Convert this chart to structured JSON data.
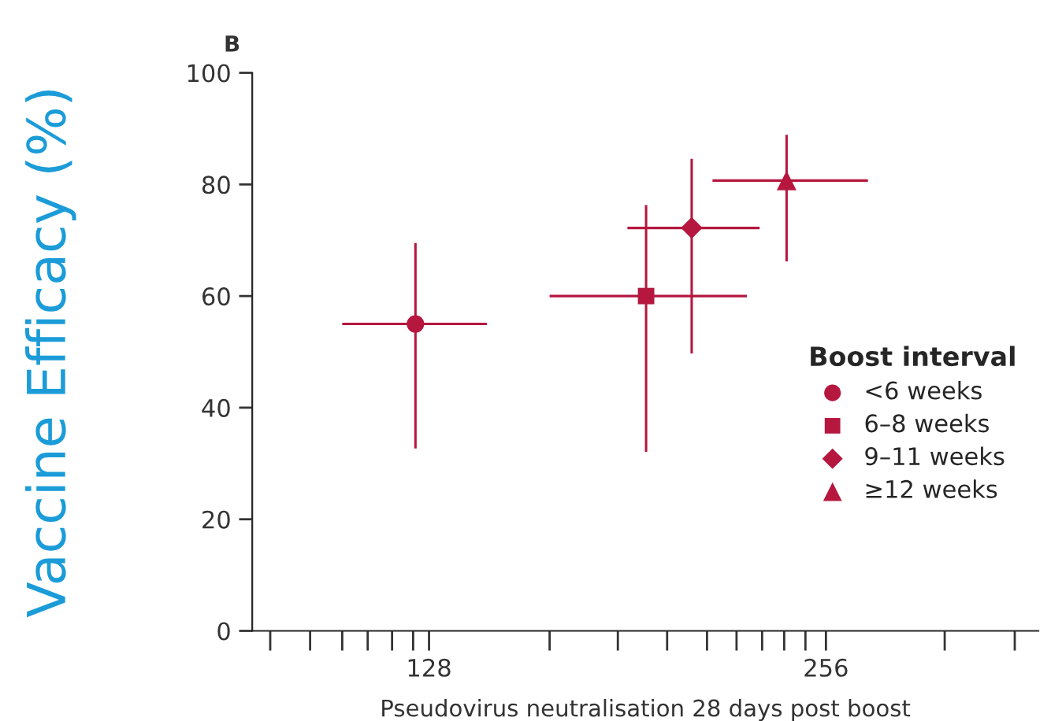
{
  "chart_data": {
    "type": "scatter",
    "title": "B",
    "xlabel": "Pseudovirus neutralisation 28 days post boost",
    "ylabel": "Vaccine Efficacy (%)",
    "legend_title": "Boost interval",
    "legend": "right",
    "log": "x",
    "grid": false,
    "xlim": [
      94,
      371
    ],
    "ylim": [
      0,
      100
    ],
    "yticks": [
      0,
      20,
      40,
      60,
      80,
      100
    ],
    "xticks": [
      {
        "value": 97,
        "label": null
      },
      {
        "value": 104,
        "label": null
      },
      {
        "value": 110,
        "label": null
      },
      {
        "value": 115,
        "label": null
      },
      {
        "value": 120,
        "label": null
      },
      {
        "value": 124.5,
        "label": null
      },
      128,
      {
        "value": 158,
        "label": null
      },
      {
        "value": 178,
        "label": null
      },
      {
        "value": 194,
        "label": null
      },
      {
        "value": 208,
        "label": null
      },
      {
        "value": 219,
        "label": null
      },
      {
        "value": 229,
        "label": null
      },
      {
        "value": 238,
        "label": null
      },
      {
        "value": 247,
        "label": null
      },
      256,
      {
        "value": 315,
        "label": null
      },
      {
        "value": 356,
        "label": null
      }
    ],
    "series": [
      {
        "name": "<6 weeks",
        "color": "#b5173f",
        "marker": "circle",
        "x": [
          125
        ],
        "values": [
          55
        ],
        "errors": [
          [
            32.7,
            69.5
          ]
        ],
        "xerrors": [
          [
            110,
            141.6
          ]
        ]
      },
      {
        "name": "6–8 weeks",
        "color": "#b5173f",
        "marker": "square",
        "x": [
          187
        ],
        "values": [
          60
        ],
        "errors": [
          [
            32.1,
            76.3
          ]
        ],
        "xerrors": [
          [
            158,
            223
          ]
        ]
      },
      {
        "name": "9–11 weeks",
        "color": "#b5173f",
        "marker": "diamond",
        "x": [
          202.5
        ],
        "values": [
          72.2
        ],
        "errors": [
          [
            49.7,
            84.6
          ]
        ],
        "xerrors": [
          [
            181,
            228
          ]
        ]
      },
      {
        "name": "≥12 weeks",
        "color": "#b5173f",
        "marker": "triangle",
        "x": [
          239
        ],
        "values": [
          80.7
        ],
        "errors": [
          [
            66.2,
            88.9
          ]
        ],
        "xerrors": [
          [
            210,
            275.5
          ]
        ]
      }
    ]
  }
}
